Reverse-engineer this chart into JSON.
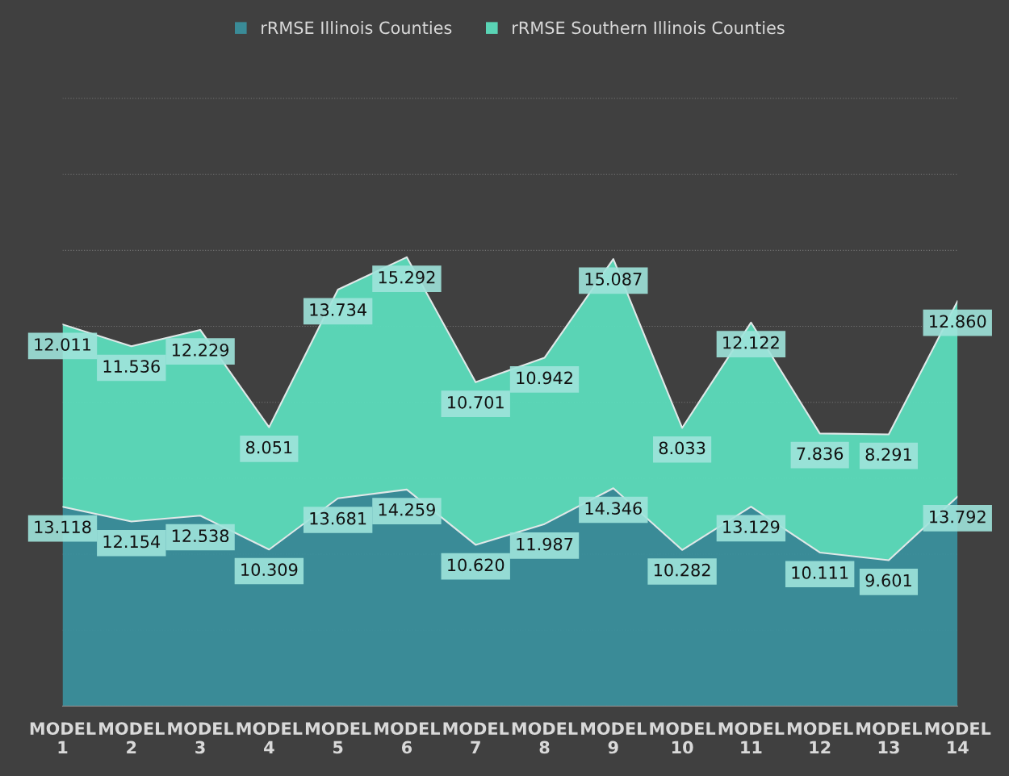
{
  "chart_data": {
    "type": "area",
    "stacked": true,
    "categories": [
      "MODEL 1",
      "MODEL 2",
      "MODEL 3",
      "MODEL 4",
      "MODEL 5",
      "MODEL 6",
      "MODEL 7",
      "MODEL 8",
      "MODEL 9",
      "MODEL 10",
      "MODEL 11",
      "MODEL 12",
      "MODEL 13",
      "MODEL 14"
    ],
    "series": [
      {
        "name": "rRMSE Illinois Counties",
        "color": "#3a8f9c",
        "values": [
          13.118,
          12.154,
          12.538,
          10.309,
          13.681,
          14.259,
          10.62,
          11.987,
          14.346,
          10.282,
          13.129,
          10.111,
          9.601,
          13.792
        ],
        "value_labels": [
          "13.118",
          "12.154",
          "12.538",
          "10.309",
          "13.681",
          "14.259",
          "10.620",
          "11.987",
          "14.346",
          "10.282",
          "13.129",
          "10.111",
          "9.601",
          "13.792"
        ]
      },
      {
        "name": "rRMSE Southern Illinois Counties",
        "color": "#5cdcbc",
        "values": [
          12.011,
          11.536,
          12.229,
          8.051,
          13.734,
          15.292,
          10.701,
          10.942,
          15.087,
          8.033,
          12.122,
          7.836,
          8.291,
          12.86
        ],
        "value_labels": [
          "12.011",
          "11.536",
          "12.229",
          "8.051",
          "13.734",
          "15.292",
          "10.701",
          "10.942",
          "15.087",
          "8.033",
          "12.122",
          "7.836",
          "8.291",
          "12.860"
        ]
      }
    ],
    "grid": "y",
    "legend": "top"
  }
}
